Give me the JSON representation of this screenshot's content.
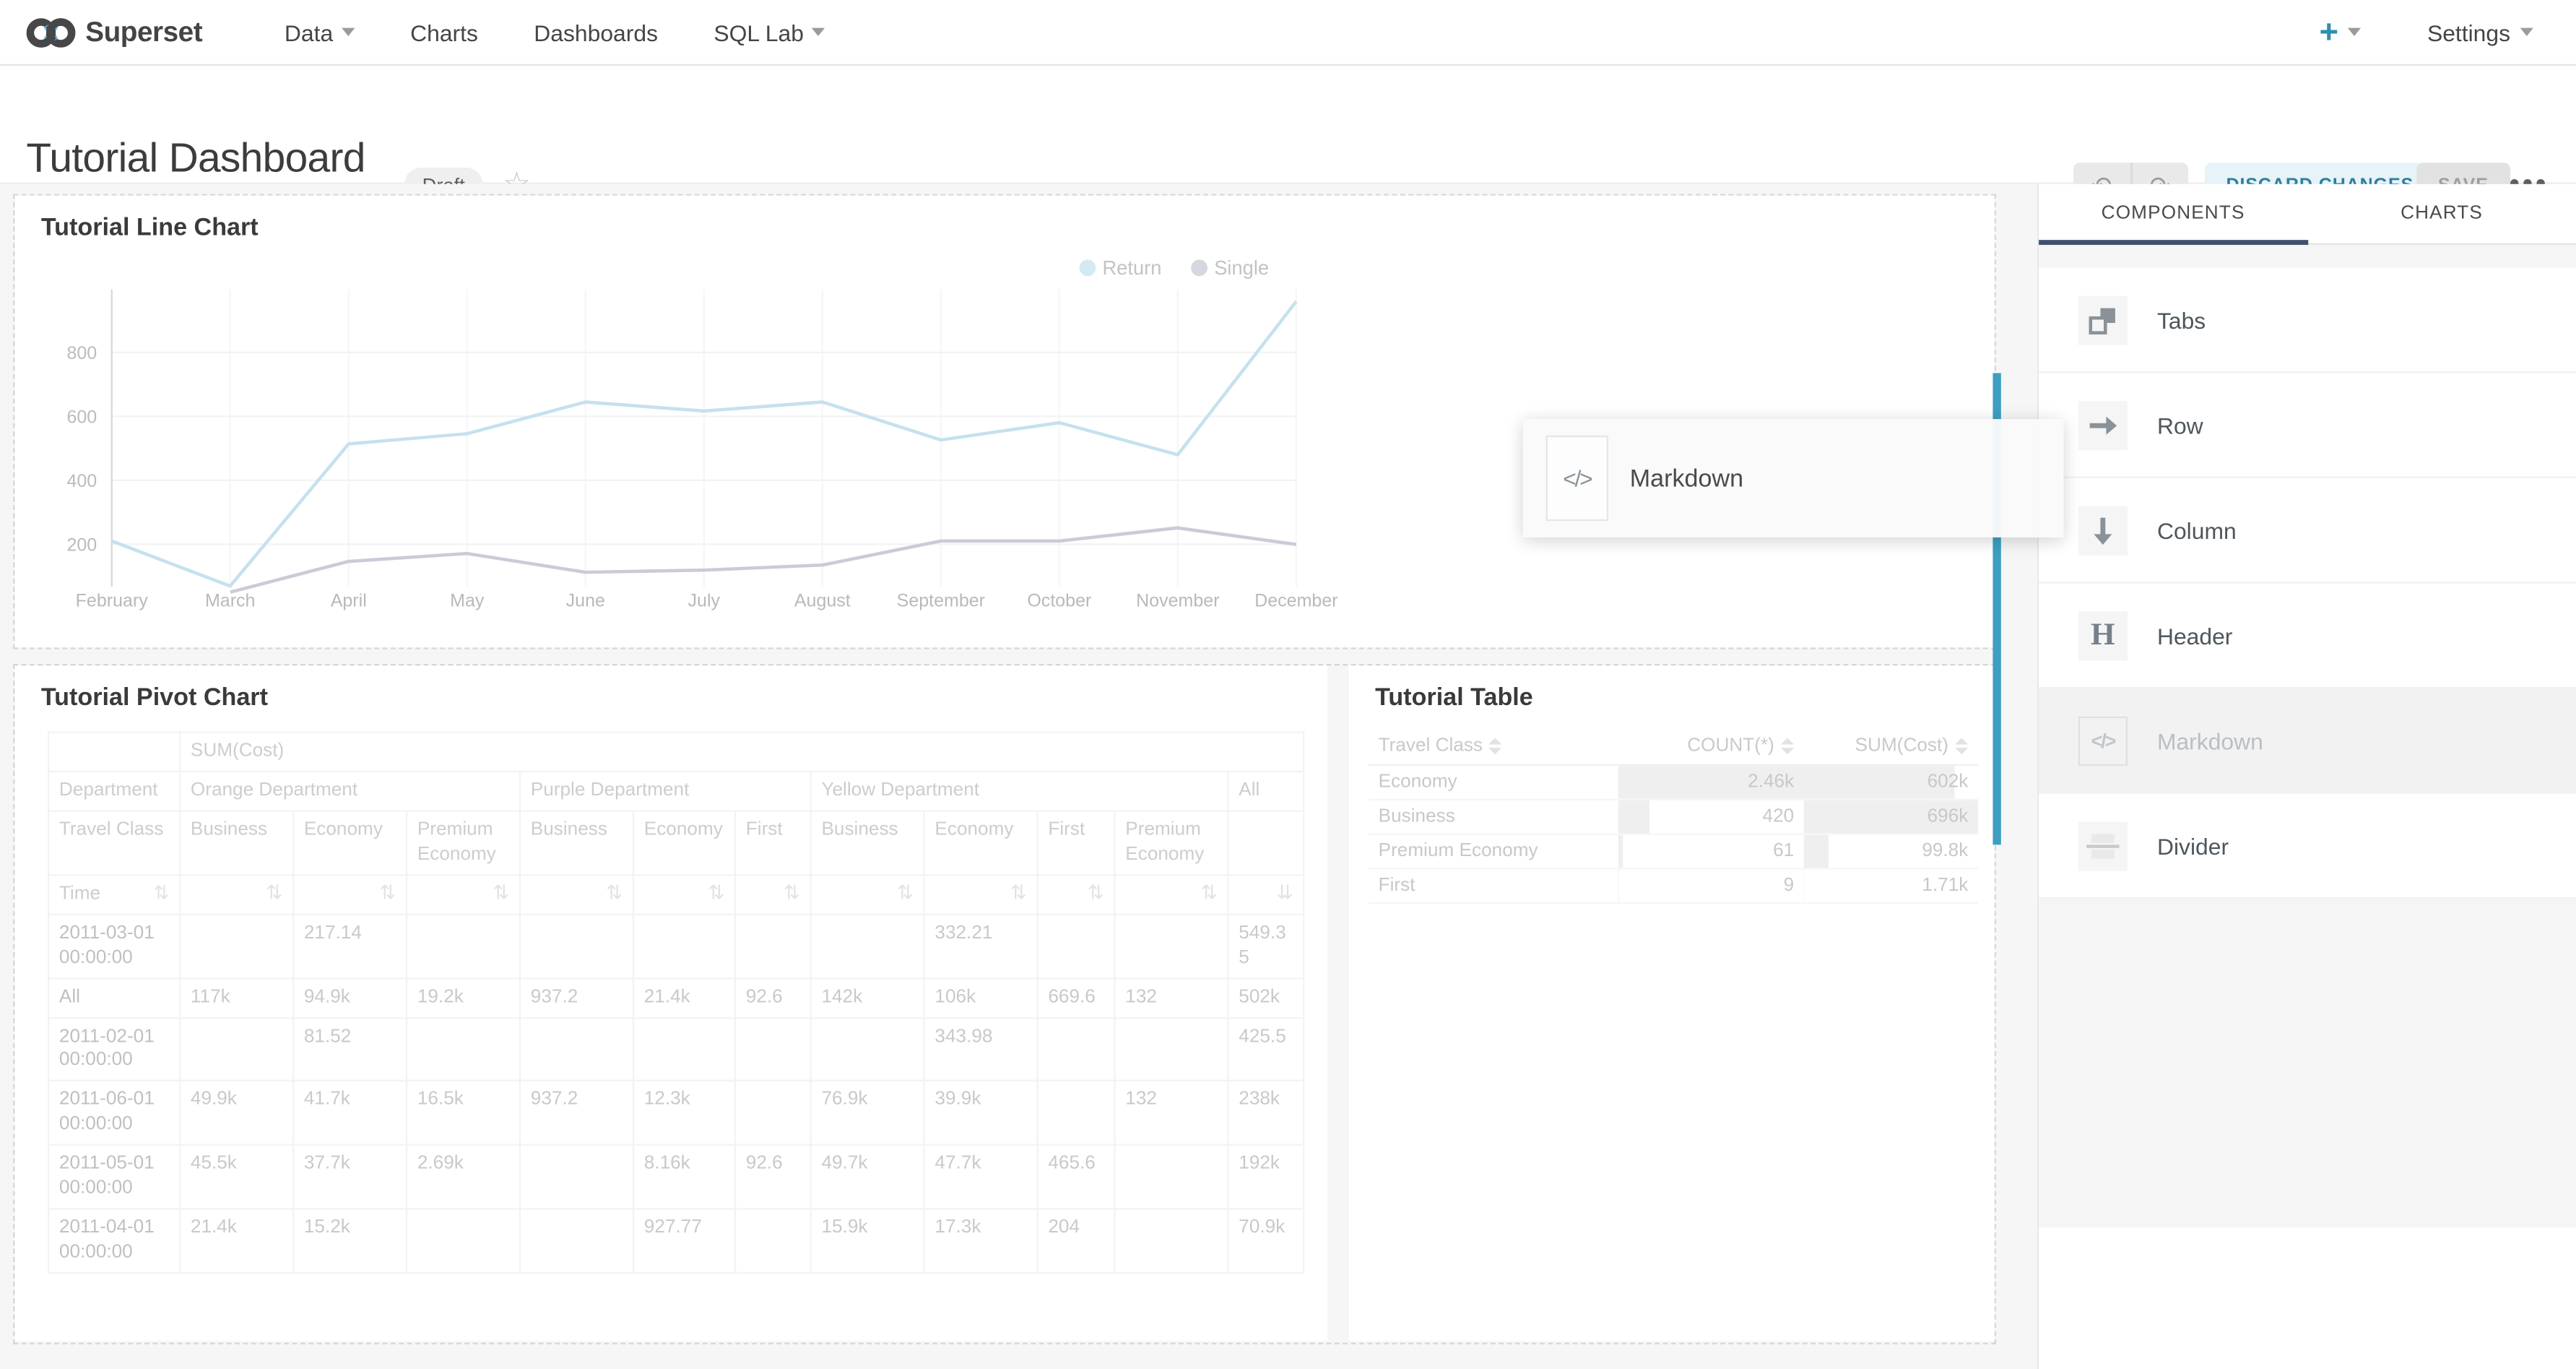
{
  "navbar": {
    "brand": "Superset",
    "menu": [
      {
        "label": "Data",
        "caret": true
      },
      {
        "label": "Charts",
        "caret": false
      },
      {
        "label": "Dashboards",
        "caret": false
      },
      {
        "label": "SQL Lab",
        "caret": true
      }
    ],
    "plus": "+",
    "settings": "Settings"
  },
  "header": {
    "title": "Tutorial Dashboard",
    "badge": "Draft",
    "discard_label": "DISCARD CHANGES",
    "save_label": "SAVE",
    "undo_icon": "undo-arrow",
    "redo_icon": "redo-arrow"
  },
  "panels": {
    "line_title": "Tutorial Line Chart",
    "pivot_title": "Tutorial Pivot Chart",
    "table_title": "Tutorial Table"
  },
  "drag_preview": {
    "label": "Markdown",
    "icon": "markdown-code-icon"
  },
  "builder_sidebar": {
    "tabs": [
      {
        "label": "COMPONENTS",
        "active": true
      },
      {
        "label": "CHARTS",
        "active": false
      }
    ],
    "items": [
      {
        "label": "Tabs",
        "icon": "tabs-icon",
        "dragging": false
      },
      {
        "label": "Row",
        "icon": "row-arrow-icon",
        "dragging": false
      },
      {
        "label": "Column",
        "icon": "column-arrow-icon",
        "dragging": false
      },
      {
        "label": "Header",
        "icon": "header-h-icon",
        "dragging": false
      },
      {
        "label": "Markdown",
        "icon": "markdown-code-icon",
        "dragging": true
      },
      {
        "label": "Divider",
        "icon": "divider-icon",
        "dragging": false
      }
    ]
  },
  "colors": {
    "accent_plus": "#2e8fb0",
    "drop_indicator": "#3d9fc2",
    "tab_underline": "#41506e",
    "return_line": "#c5e1ee",
    "single_line": "#c9ccd7",
    "discard_bg": "#e7f3f8",
    "discard_text": "#2b7f9e"
  },
  "chart_data": [
    {
      "type": "line",
      "title": "Tutorial Line Chart",
      "x": [
        "February",
        "March",
        "April",
        "May",
        "June",
        "July",
        "August",
        "September",
        "October",
        "November",
        "December"
      ],
      "series": [
        {
          "name": "Return",
          "color": "#c5e1ee",
          "values": [
            210,
            69,
            514,
            546,
            645,
            617,
            645,
            526,
            580,
            480,
            960
          ]
        },
        {
          "name": "Single",
          "color": "#c9ccd7",
          "values": [
            null,
            50,
            146,
            171,
            112,
            119,
            135,
            210,
            210,
            251,
            199
          ]
        }
      ],
      "yticks": [
        200,
        400,
        600,
        800
      ],
      "ylim": [
        0,
        1000
      ],
      "grid": true,
      "legend_position": "top-right"
    },
    {
      "type": "table",
      "title": "Tutorial Pivot Chart",
      "measure": "SUM(Cost)",
      "row_dim_label": "Department",
      "col_dim_label": "Travel Class",
      "time_label": "Time",
      "groups": [
        {
          "name": "Orange Department",
          "cols": [
            "Business",
            "Economy",
            "Premium Economy"
          ]
        },
        {
          "name": "Purple Department",
          "cols": [
            "Business",
            "Economy",
            "First"
          ]
        },
        {
          "name": "Yellow Department",
          "cols": [
            "Business",
            "Economy",
            "First",
            "Premium Economy"
          ]
        },
        {
          "name": "All",
          "cols": [
            ""
          ]
        }
      ],
      "rows": [
        {
          "label": "2011-03-01 00:00:00",
          "values": [
            "",
            "217.14",
            "",
            "",
            "",
            "",
            "",
            "332.21",
            "",
            "",
            "549.35"
          ]
        },
        {
          "label": "All",
          "values": [
            "117k",
            "94.9k",
            "19.2k",
            "937.2",
            "21.4k",
            "92.6",
            "142k",
            "106k",
            "669.6",
            "132",
            "502k"
          ]
        },
        {
          "label": "2011-02-01 00:00:00",
          "values": [
            "",
            "81.52",
            "",
            "",
            "",
            "",
            "",
            "343.98",
            "",
            "",
            "425.5"
          ]
        },
        {
          "label": "2011-06-01 00:00:00",
          "values": [
            "49.9k",
            "41.7k",
            "16.5k",
            "937.2",
            "12.3k",
            "",
            "76.9k",
            "39.9k",
            "",
            "132",
            "238k"
          ]
        },
        {
          "label": "2011-05-01 00:00:00",
          "values": [
            "45.5k",
            "37.7k",
            "2.69k",
            "",
            "8.16k",
            "92.6",
            "49.7k",
            "47.7k",
            "465.6",
            "",
            "192k"
          ]
        },
        {
          "label": "2011-04-01 00:00:00",
          "values": [
            "21.4k",
            "15.2k",
            "",
            "",
            "927.77",
            "",
            "15.9k",
            "17.3k",
            "204",
            "",
            "70.9k"
          ]
        }
      ]
    },
    {
      "type": "table",
      "title": "Tutorial Table",
      "columns": [
        "Travel Class",
        "COUNT(*)",
        "SUM(Cost)"
      ],
      "rows": [
        {
          "travel_class": "Economy",
          "count": "2.46k",
          "sum": "602k",
          "count_num": 2460,
          "sum_num": 602000
        },
        {
          "travel_class": "Business",
          "count": "420",
          "sum": "696k",
          "count_num": 420,
          "sum_num": 696000
        },
        {
          "travel_class": "Premium Economy",
          "count": "61",
          "sum": "99.8k",
          "count_num": 61,
          "sum_num": 99800
        },
        {
          "travel_class": "First",
          "count": "9",
          "sum": "1.71k",
          "count_num": 9,
          "sum_num": 1710
        }
      ]
    }
  ]
}
